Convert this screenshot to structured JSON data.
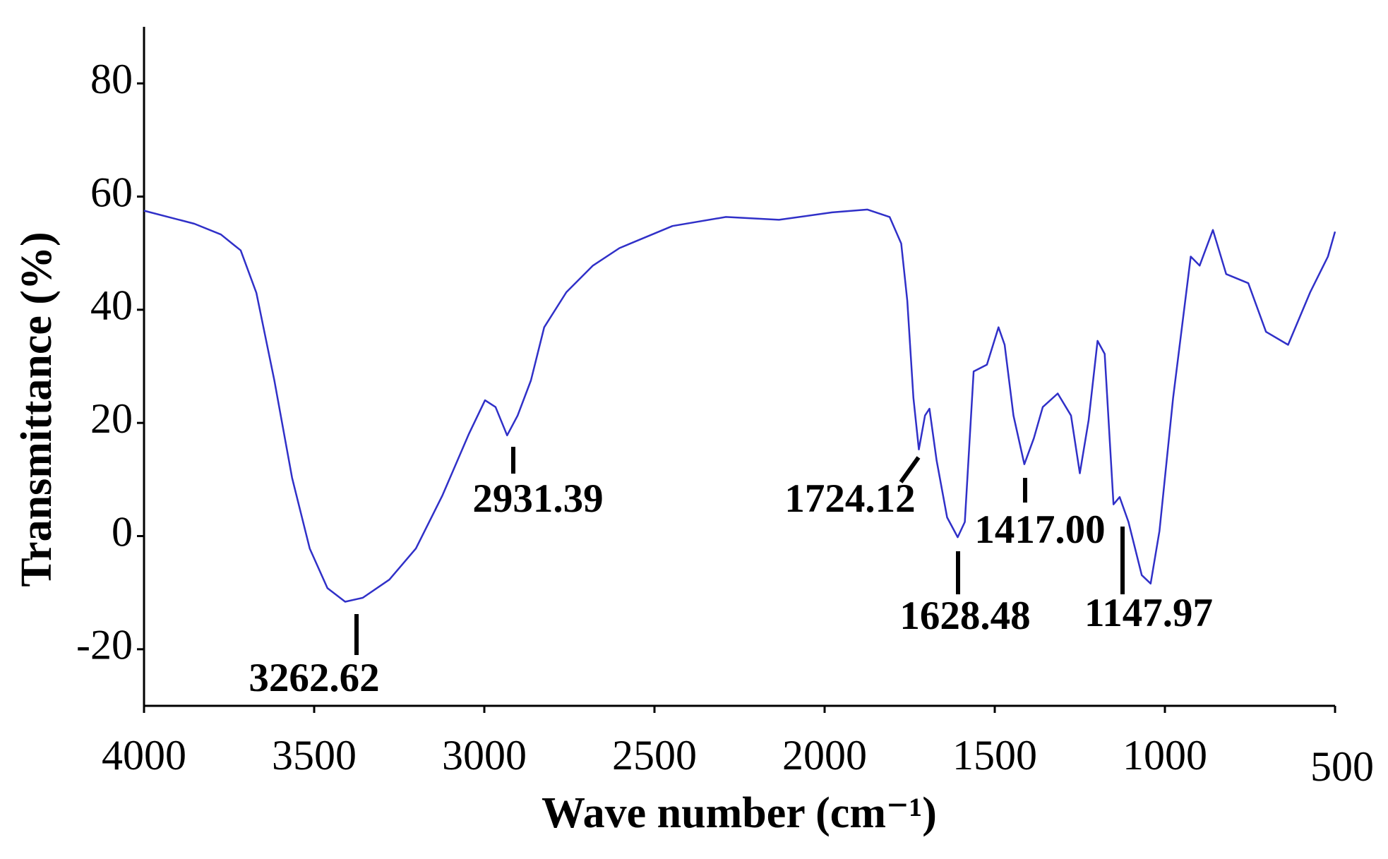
{
  "chart_data": {
    "type": "line",
    "x_label": "Wave number (cm⁻¹)",
    "y_label": "Transmittance (%)",
    "xlim": [
      4000,
      500
    ],
    "ylim": [
      -30,
      90
    ],
    "xticks": [
      4000,
      3500,
      3000,
      2500,
      2000,
      1500,
      1000,
      500
    ],
    "yticks": [
      -20,
      0,
      20,
      40,
      60,
      80
    ],
    "annotations": [
      "3262.62",
      "2931.39",
      "1724.12",
      "1628.48",
      "1417.00",
      "1147.97"
    ],
    "series": [
      {
        "color": "#3030c8",
        "x": [
          4000,
          3852,
          3774,
          3735,
          3716,
          3670,
          3617,
          3565,
          3513,
          3461,
          3409,
          3357,
          3279,
          3201,
          3123,
          3045,
          2998,
          2967,
          2933,
          2902,
          2863,
          2824,
          2759,
          2681,
          2603,
          2447,
          2290,
          2134,
          1978,
          1874,
          1809,
          1775,
          1757,
          1739,
          1723,
          1705,
          1692,
          1671,
          1640,
          1609,
          1588,
          1562,
          1523,
          1489,
          1471,
          1445,
          1413,
          1385,
          1359,
          1315,
          1276,
          1250,
          1224,
          1198,
          1177,
          1151,
          1133,
          1107,
          1068,
          1042,
          1016,
          976,
          950,
          924,
          898,
          859,
          820,
          755,
          703,
          638,
          573,
          521,
          500
        ],
        "values": [
          57.5,
          55.2,
          53.3,
          51.4,
          50.5,
          43,
          27.5,
          10.3,
          -2.2,
          -9.2,
          -11.6,
          -10.9,
          -7.7,
          -2.2,
          7.2,
          18.1,
          24,
          22.8,
          17.8,
          21.3,
          27.5,
          36.9,
          43.1,
          47.8,
          50.9,
          54.8,
          56.4,
          55.9,
          57.2,
          57.7,
          56.4,
          51.7,
          41.6,
          24.4,
          15.3,
          21.3,
          22.5,
          13.4,
          3.3,
          -0.2,
          2.5,
          29.1,
          30.3,
          36.9,
          33.8,
          21.3,
          12.7,
          17.3,
          22.8,
          25.2,
          21.3,
          11.1,
          20.5,
          34.5,
          32.2,
          5.6,
          6.9,
          2.5,
          -6.9,
          -8.4,
          0.9,
          24.4,
          36.9,
          49.4,
          47.8,
          54.1,
          46.3,
          44.7,
          36.1,
          33.8,
          43.1,
          49.4,
          53.8
        ]
      }
    ]
  }
}
